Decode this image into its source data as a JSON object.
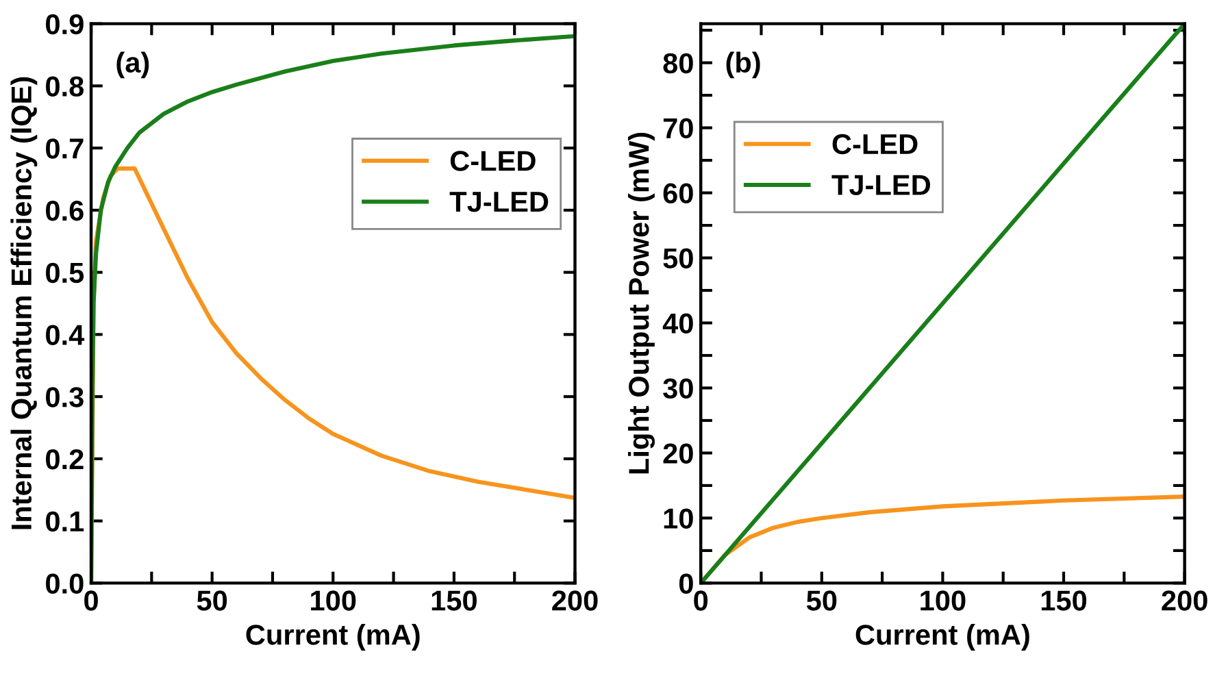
{
  "chart_data": [
    {
      "type": "line",
      "xlabel": "Current (mA)",
      "ylabel": "Internal Quantum Efficiency (IQE)",
      "annotations": [
        "(a)"
      ],
      "xlim": [
        0,
        200
      ],
      "ylim": [
        0,
        0.9
      ],
      "xticks": [
        0,
        {
          "value": 25,
          "label": null
        },
        50,
        {
          "value": 75,
          "label": null
        },
        100,
        {
          "value": 125,
          "label": null
        },
        150,
        {
          "value": 175,
          "label": null
        },
        200
      ],
      "yticks": [
        {
          "value": 0,
          "label": "0.0"
        },
        0.1,
        0.2,
        0.3,
        0.4,
        0.5,
        0.6,
        0.7,
        0.8,
        0.9
      ],
      "legend": "upper right",
      "grid": false,
      "series": [
        {
          "name": "C-LED",
          "color": "#f7941d",
          "x": [
            0,
            1,
            2,
            5,
            8,
            11,
            18,
            30,
            40,
            50,
            60,
            70,
            80,
            90,
            100,
            120,
            140,
            160,
            180,
            200
          ],
          "values": [
            0,
            0.45,
            0.55,
            0.62,
            0.655,
            0.667,
            0.667,
            0.57,
            0.49,
            0.42,
            0.37,
            0.33,
            0.295,
            0.265,
            0.24,
            0.205,
            0.18,
            0.163,
            0.15,
            0.137
          ]
        },
        {
          "name": "TJ-LED",
          "color": "#1a7f1a",
          "x": [
            0,
            0.5,
            1,
            2,
            4,
            7,
            10,
            15,
            20,
            30,
            40,
            50,
            60,
            80,
            100,
            120,
            150,
            175,
            200
          ],
          "values": [
            0,
            0.3,
            0.45,
            0.53,
            0.6,
            0.645,
            0.67,
            0.7,
            0.725,
            0.755,
            0.775,
            0.79,
            0.802,
            0.823,
            0.84,
            0.852,
            0.865,
            0.873,
            0.88
          ]
        }
      ]
    },
    {
      "type": "line",
      "xlabel": "Current (mA)",
      "ylabel": "Light Output Power (mW)",
      "annotations": [
        "(b)"
      ],
      "xlim": [
        0,
        200
      ],
      "ylim": [
        0,
        86
      ],
      "xticks": [
        0,
        {
          "value": 25,
          "label": null
        },
        50,
        {
          "value": 75,
          "label": null
        },
        100,
        {
          "value": 125,
          "label": null
        },
        150,
        {
          "value": 175,
          "label": null
        },
        200
      ],
      "yticks": [
        0,
        {
          "value": 5,
          "label": null
        },
        10,
        {
          "value": 15,
          "label": null
        },
        20,
        {
          "value": 25,
          "label": null
        },
        30,
        {
          "value": 35,
          "label": null
        },
        40,
        {
          "value": 45,
          "label": null
        },
        50,
        {
          "value": 55,
          "label": null
        },
        60,
        {
          "value": 65,
          "label": null
        },
        70,
        {
          "value": 75,
          "label": null
        },
        80,
        {
          "value": 85,
          "label": null
        }
      ],
      "legend": "upper left",
      "grid": false,
      "series": [
        {
          "name": "C-LED",
          "color": "#f7941d",
          "x": [
            0,
            10,
            20,
            30,
            40,
            50,
            70,
            100,
            150,
            200
          ],
          "values": [
            0,
            4.3,
            7,
            8.5,
            9.4,
            10,
            10.9,
            11.8,
            12.7,
            13.3
          ]
        },
        {
          "name": "TJ-LED",
          "color": "#1a7f1a",
          "x": [
            0,
            50,
            100,
            150,
            200
          ],
          "values": [
            0,
            21.5,
            43,
            64.5,
            86
          ]
        }
      ]
    }
  ]
}
